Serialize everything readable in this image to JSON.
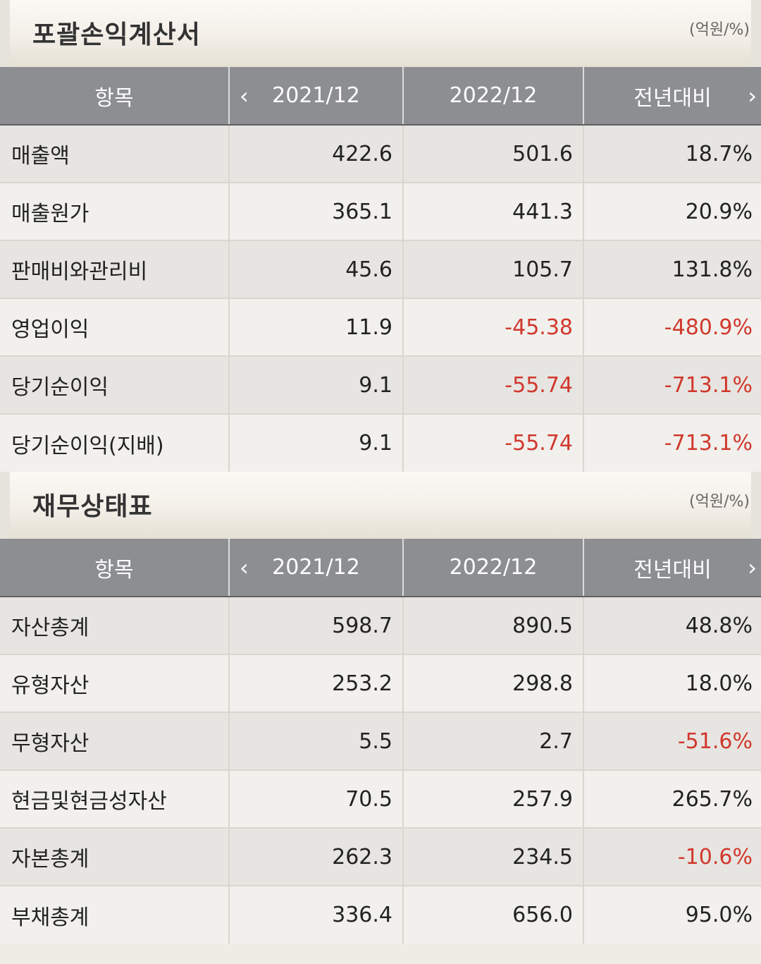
{
  "income": {
    "title": "포괄손익계산서",
    "unit": "(억원/%)",
    "headers": [
      "항목",
      "2021/12",
      "2022/12",
      "전년대비"
    ],
    "rows": [
      {
        "label": "매출액",
        "v2021": "422.6",
        "v2022": "501.6",
        "yoy": "18.7%"
      },
      {
        "label": "매출원가",
        "v2021": "365.1",
        "v2022": "441.3",
        "yoy": "20.9%"
      },
      {
        "label": "판매비와관리비",
        "v2021": "45.6",
        "v2022": "105.7",
        "yoy": "131.8%"
      },
      {
        "label": "영업이익",
        "v2021": "11.9",
        "v2022": "-45.38",
        "yoy": "-480.9%"
      },
      {
        "label": "당기순이익",
        "v2021": "9.1",
        "v2022": "-55.74",
        "yoy": "-713.1%"
      },
      {
        "label": "당기순이익(지배)",
        "v2021": "9.1",
        "v2022": "-55.74",
        "yoy": "-713.1%"
      }
    ]
  },
  "balance": {
    "title": "재무상태표",
    "unit": "(억원/%)",
    "headers": [
      "항목",
      "2021/12",
      "2022/12",
      "전년대비"
    ],
    "rows": [
      {
        "label": "자산총계",
        "v2021": "598.7",
        "v2022": "890.5",
        "yoy": "48.8%"
      },
      {
        "label": "유형자산",
        "v2021": "253.2",
        "v2022": "298.8",
        "yoy": "18.0%"
      },
      {
        "label": "무형자산",
        "v2021": "5.5",
        "v2022": "2.7",
        "yoy": "-51.6%"
      },
      {
        "label": "현금및현금성자산",
        "v2021": "70.5",
        "v2022": "257.9",
        "yoy": "265.7%"
      },
      {
        "label": "자본총계",
        "v2021": "262.3",
        "v2022": "234.5",
        "yoy": "-10.6%"
      },
      {
        "label": "부채총계",
        "v2021": "336.4",
        "v2022": "656.0",
        "yoy": "95.0%"
      }
    ]
  },
  "colors": {
    "negative": "#d0382d",
    "header_bg": "#8c8e92"
  },
  "icons": {
    "prev": "chevron-left-icon",
    "next": "chevron-right-icon"
  }
}
